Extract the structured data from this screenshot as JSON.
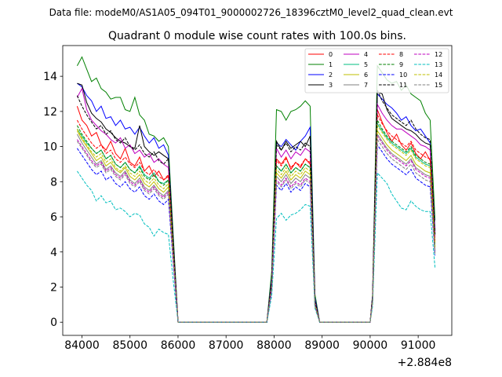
{
  "figure": {
    "suptitle": "Data file: modeM0/AS1A05_094T01_9000002726_18396cztM0_level2_quad_clean.evt"
  },
  "chart_data": {
    "type": "line",
    "title": "Quadrant 0 module wise count rates with 100.0s bins.",
    "xlabel": "",
    "ylabel": "",
    "x_offset_label": "+2.884e8",
    "x_offset": 288400000,
    "xlim": [
      83600,
      91700
    ],
    "ylim": [
      -0.75,
      15.75
    ],
    "xticks": [
      84000,
      85000,
      86000,
      87000,
      88000,
      89000,
      90000,
      91000
    ],
    "yticks": [
      0,
      2,
      4,
      6,
      8,
      10,
      12,
      14
    ],
    "legend_position": "top-right",
    "x": [
      83900,
      84000,
      84100,
      84200,
      84300,
      84400,
      84500,
      84600,
      84700,
      84800,
      84900,
      85000,
      85100,
      85200,
      85300,
      85400,
      85500,
      85600,
      85700,
      85800,
      85900,
      86000,
      86100,
      87850,
      87950,
      88050,
      88150,
      88250,
      88350,
      88450,
      88550,
      88650,
      88750,
      88850,
      88950,
      90000,
      90050,
      90150,
      90250,
      90350,
      90450,
      90550,
      90650,
      90750,
      90850,
      90950,
      91050,
      91150,
      91250,
      91350
    ],
    "series": [
      {
        "name": "0",
        "color": "#ff0000",
        "style": "solid",
        "values": [
          12.3,
          11.5,
          11.2,
          10.6,
          10.8,
          10.1,
          9.8,
          10.3,
          9.6,
          9.3,
          9.9,
          9.1,
          8.9,
          9.4,
          8.6,
          8.9,
          8.3,
          8.6,
          8.1,
          8.3,
          4.2,
          0.0,
          0.0,
          0.0,
          2.2,
          9.3,
          9.0,
          9.4,
          8.7,
          9.1,
          8.8,
          9.3,
          9.0,
          1.1,
          0.0,
          0.0,
          1.3,
          12.1,
          11.4,
          10.8,
          10.3,
          10.7,
          10.1,
          9.8,
          10.2,
          9.6,
          9.3,
          9.7,
          9.2,
          4.5
        ]
      },
      {
        "name": "1",
        "color": "#008000",
        "style": "solid",
        "values": [
          14.6,
          15.1,
          14.4,
          13.7,
          13.9,
          13.3,
          13.1,
          12.7,
          12.8,
          12.8,
          12.1,
          12.0,
          12.8,
          11.8,
          11.5,
          10.7,
          10.6,
          10.3,
          10.5,
          10.0,
          5.0,
          0.0,
          0.0,
          0.0,
          2.9,
          12.1,
          12.0,
          11.5,
          12.0,
          12.1,
          12.3,
          12.6,
          12.3,
          1.6,
          0.0,
          0.0,
          1.6,
          14.6,
          14.2,
          13.8,
          13.6,
          13.7,
          13.2,
          13.5,
          13.0,
          12.8,
          12.6,
          11.9,
          11.5,
          5.8
        ]
      },
      {
        "name": "2",
        "color": "#0000ff",
        "style": "solid",
        "values": [
          13.6,
          13.4,
          12.9,
          12.6,
          12.0,
          12.3,
          11.6,
          11.7,
          11.2,
          11.5,
          11.0,
          11.1,
          10.7,
          11.1,
          10.6,
          10.2,
          10.5,
          9.9,
          10.1,
          9.5,
          4.6,
          0.0,
          0.0,
          0.0,
          2.5,
          10.2,
          10.0,
          10.4,
          10.1,
          9.8,
          10.3,
          10.6,
          11.1,
          1.4,
          0.0,
          0.0,
          1.5,
          13.0,
          12.7,
          12.4,
          12.2,
          11.9,
          11.5,
          11.7,
          11.2,
          10.9,
          11.0,
          10.6,
          10.2,
          5.2
        ]
      },
      {
        "name": "3",
        "color": "#000000",
        "style": "solid",
        "values": [
          13.6,
          13.5,
          12.5,
          11.9,
          11.6,
          11.4,
          11.0,
          10.8,
          10.5,
          10.3,
          10.2,
          10.0,
          9.9,
          11.2,
          10.0,
          9.7,
          9.5,
          9.7,
          9.5,
          9.3,
          4.5,
          0.0,
          0.0,
          0.0,
          2.4,
          10.3,
          9.8,
          10.3,
          9.9,
          10.1,
          10.3,
          10.0,
          10.6,
          1.3,
          0.0,
          0.0,
          1.5,
          13.1,
          13.0,
          12.1,
          11.6,
          11.4,
          11.2,
          11.0,
          10.9,
          10.7,
          10.4,
          10.2,
          10.1,
          5.0
        ]
      },
      {
        "name": "4",
        "color": "#bf00bf",
        "style": "solid",
        "values": [
          12.8,
          13.3,
          12.1,
          11.5,
          11.2,
          10.9,
          10.7,
          10.4,
          10.2,
          10.5,
          9.9,
          10.1,
          9.6,
          9.8,
          9.4,
          9.6,
          9.1,
          9.3,
          9.0,
          8.8,
          4.3,
          0.0,
          0.0,
          0.0,
          2.3,
          9.9,
          9.4,
          9.8,
          9.3,
          9.7,
          9.5,
          9.9,
          9.7,
          1.2,
          0.0,
          0.0,
          1.4,
          12.4,
          11.9,
          11.5,
          11.2,
          11.0,
          11.0,
          10.8,
          10.6,
          10.4,
          10.1,
          10.0,
          9.8,
          4.8
        ]
      },
      {
        "name": "5",
        "color": "#00bf80",
        "style": "solid",
        "values": [
          11.0,
          10.6,
          10.2,
          9.9,
          9.6,
          9.8,
          9.3,
          9.5,
          9.0,
          8.8,
          9.1,
          8.7,
          8.5,
          8.9,
          8.4,
          8.2,
          8.5,
          8.0,
          7.9,
          8.1,
          3.9,
          0.0,
          0.0,
          0.0,
          2.1,
          8.9,
          8.6,
          9.0,
          8.5,
          8.8,
          8.6,
          9.0,
          8.8,
          1.1,
          0.0,
          0.0,
          1.3,
          11.3,
          10.9,
          10.5,
          10.2,
          10.0,
          9.8,
          9.6,
          9.9,
          9.4,
          9.2,
          9.0,
          8.9,
          4.3
        ]
      },
      {
        "name": "6",
        "color": "#bfbf00",
        "style": "solid",
        "values": [
          10.9,
          10.4,
          10.0,
          9.6,
          9.2,
          9.4,
          8.9,
          9.1,
          8.7,
          8.5,
          8.8,
          8.3,
          8.1,
          8.4,
          7.9,
          7.7,
          8.0,
          7.6,
          7.4,
          7.7,
          3.7,
          0.0,
          0.0,
          0.0,
          2.0,
          8.5,
          8.2,
          8.6,
          8.1,
          8.4,
          8.2,
          8.6,
          8.4,
          1.0,
          0.0,
          0.0,
          1.2,
          10.9,
          10.5,
          10.1,
          9.8,
          9.6,
          9.4,
          9.2,
          9.5,
          9.0,
          8.8,
          8.6,
          8.5,
          4.1
        ]
      },
      {
        "name": "7",
        "color": "#808080",
        "style": "solid",
        "values": [
          10.7,
          10.2,
          9.8,
          9.4,
          9.0,
          9.2,
          8.7,
          8.9,
          8.5,
          8.3,
          8.6,
          8.1,
          7.9,
          8.2,
          7.7,
          7.5,
          7.8,
          7.4,
          7.2,
          7.5,
          3.6,
          0.0,
          0.0,
          0.0,
          1.9,
          8.3,
          8.0,
          8.4,
          7.9,
          8.2,
          8.0,
          8.4,
          8.2,
          1.0,
          0.0,
          0.0,
          1.2,
          10.7,
          10.3,
          9.9,
          9.6,
          9.4,
          9.2,
          9.0,
          9.3,
          8.8,
          8.6,
          8.4,
          8.3,
          4.0
        ]
      },
      {
        "name": "8",
        "color": "#ff0000",
        "style": "dashed",
        "values": [
          11.5,
          11.0,
          10.6,
          10.2,
          9.9,
          10.1,
          9.6,
          9.8,
          9.3,
          9.1,
          9.4,
          9.0,
          8.8,
          9.1,
          8.6,
          8.4,
          8.7,
          8.3,
          8.1,
          8.4,
          4.0,
          0.0,
          0.0,
          0.0,
          2.1,
          9.2,
          8.9,
          9.3,
          8.8,
          9.1,
          8.9,
          9.3,
          9.1,
          1.1,
          0.0,
          0.0,
          1.3,
          11.8,
          11.3,
          10.9,
          10.6,
          10.4,
          10.2,
          10.0,
          10.3,
          9.8,
          9.6,
          9.4,
          9.3,
          4.5
        ]
      },
      {
        "name": "9",
        "color": "#008000",
        "style": "dashed",
        "values": [
          11.2,
          10.7,
          10.3,
          9.9,
          9.6,
          9.8,
          9.3,
          9.5,
          9.0,
          8.8,
          9.1,
          8.7,
          8.5,
          8.8,
          8.3,
          8.1,
          8.4,
          8.0,
          7.8,
          8.1,
          3.9,
          0.0,
          0.0,
          0.0,
          2.0,
          8.9,
          8.6,
          9.0,
          8.5,
          8.8,
          8.6,
          9.0,
          8.8,
          1.1,
          0.0,
          0.0,
          1.3,
          11.5,
          11.0,
          10.6,
          10.3,
          10.1,
          9.9,
          9.7,
          10.0,
          9.5,
          9.3,
          9.1,
          9.0,
          4.3
        ]
      },
      {
        "name": "10",
        "color": "#0000ff",
        "style": "dashed",
        "values": [
          9.9,
          9.5,
          9.1,
          8.7,
          8.4,
          8.6,
          8.1,
          8.3,
          7.9,
          7.7,
          8.0,
          7.6,
          7.4,
          7.7,
          7.2,
          7.0,
          7.3,
          6.9,
          6.7,
          7.0,
          3.4,
          0.0,
          0.0,
          0.0,
          1.8,
          7.8,
          7.5,
          7.9,
          7.4,
          7.7,
          7.5,
          7.9,
          7.7,
          0.9,
          0.0,
          0.0,
          1.1,
          10.1,
          9.7,
          9.3,
          9.0,
          8.8,
          8.6,
          8.4,
          8.7,
          8.2,
          8.0,
          7.8,
          7.7,
          3.8
        ]
      },
      {
        "name": "11",
        "color": "#000000",
        "style": "dashed",
        "values": [
          12.9,
          12.3,
          11.8,
          11.4,
          11.0,
          11.2,
          10.7,
          10.9,
          10.4,
          10.2,
          10.5,
          10.0,
          9.8,
          10.1,
          9.6,
          9.4,
          9.7,
          9.2,
          9.0,
          9.3,
          4.5,
          0.0,
          0.0,
          0.0,
          2.3,
          10.1,
          9.8,
          10.2,
          9.7,
          10.0,
          9.8,
          10.2,
          10.0,
          1.2,
          0.0,
          0.0,
          1.4,
          13.2,
          12.6,
          12.2,
          11.8,
          11.6,
          11.4,
          11.2,
          11.5,
          11.0,
          10.7,
          10.5,
          10.4,
          5.0
        ]
      },
      {
        "name": "12",
        "color": "#bf00bf",
        "style": "dashed",
        "values": [
          10.4,
          10.0,
          9.6,
          9.2,
          8.9,
          9.1,
          8.6,
          8.8,
          8.4,
          8.2,
          8.5,
          8.0,
          7.8,
          8.1,
          7.6,
          7.4,
          7.7,
          7.3,
          7.1,
          7.4,
          3.6,
          0.0,
          0.0,
          0.0,
          1.9,
          8.1,
          7.8,
          8.2,
          7.7,
          8.0,
          7.8,
          8.2,
          8.0,
          1.0,
          0.0,
          0.0,
          1.2,
          10.6,
          10.2,
          9.8,
          9.5,
          9.3,
          9.1,
          8.9,
          9.2,
          8.7,
          8.5,
          8.3,
          8.2,
          3.9
        ]
      },
      {
        "name": "13",
        "color": "#00bfbf",
        "style": "dashed",
        "values": [
          8.6,
          8.2,
          7.8,
          7.5,
          6.9,
          7.2,
          6.8,
          6.9,
          6.4,
          6.5,
          6.3,
          6.0,
          6.2,
          6.1,
          5.6,
          5.4,
          4.9,
          5.3,
          5.1,
          5.0,
          2.4,
          0.0,
          0.0,
          0.0,
          1.5,
          5.9,
          6.2,
          5.8,
          6.1,
          6.2,
          6.4,
          6.7,
          6.6,
          0.8,
          0.0,
          0.0,
          0.9,
          8.5,
          8.2,
          7.9,
          7.3,
          6.9,
          6.5,
          6.4,
          6.9,
          6.6,
          6.4,
          6.3,
          6.3,
          3.1
        ]
      },
      {
        "name": "14",
        "color": "#bfbf00",
        "style": "dashed",
        "values": [
          11.0,
          10.5,
          10.1,
          9.7,
          9.4,
          9.6,
          9.1,
          9.3,
          8.8,
          8.6,
          8.9,
          8.5,
          8.3,
          8.6,
          8.1,
          7.9,
          8.2,
          7.8,
          7.6,
          7.9,
          3.8,
          0.0,
          0.0,
          0.0,
          2.0,
          8.7,
          8.4,
          8.8,
          8.3,
          8.6,
          8.4,
          8.8,
          8.6,
          1.0,
          0.0,
          0.0,
          1.2,
          11.2,
          10.8,
          10.4,
          10.1,
          9.9,
          9.7,
          9.5,
          9.8,
          9.3,
          9.1,
          8.9,
          8.8,
          4.2
        ]
      },
      {
        "name": "15",
        "color": "#808080",
        "style": "dashed",
        "values": [
          10.3,
          9.9,
          9.5,
          9.1,
          8.8,
          9.0,
          8.5,
          8.7,
          8.3,
          8.1,
          8.4,
          7.9,
          7.7,
          8.0,
          7.5,
          7.3,
          7.6,
          7.2,
          7.0,
          7.3,
          3.5,
          0.0,
          0.0,
          0.0,
          1.9,
          8.0,
          7.7,
          8.1,
          7.6,
          7.9,
          7.7,
          8.1,
          7.9,
          0.9,
          0.0,
          0.0,
          1.1,
          10.4,
          10.0,
          9.6,
          9.3,
          9.1,
          8.9,
          8.7,
          9.0,
          8.5,
          8.3,
          8.1,
          8.0,
          3.9
        ]
      }
    ]
  }
}
